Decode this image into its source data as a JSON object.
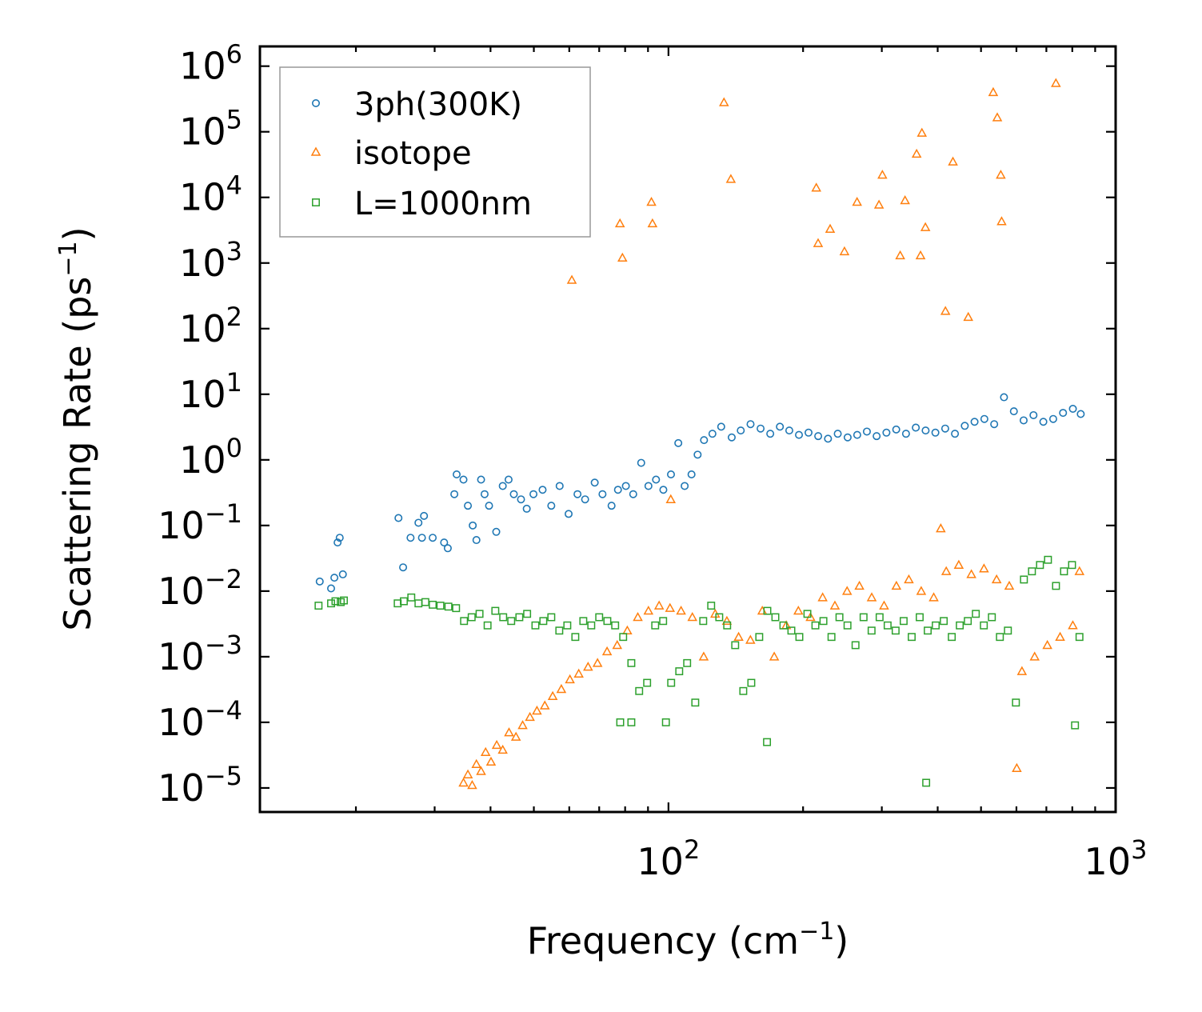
{
  "chart_data": {
    "type": "scatter",
    "title": "",
    "xlabel": "Frequency (cm",
    "xlabel_sup": "−1",
    "xlabel_end": ")",
    "ylabel": "Scattering Rate (ps",
    "ylabel_sup": "−1",
    "ylabel_end": ")",
    "xscale": "log",
    "yscale": "log",
    "xlim": [
      12.2,
      1000
    ],
    "ylim": [
      4.3e-06,
      2000000.0
    ],
    "x_ticks": [
      {
        "value": 100,
        "base": "10",
        "exp": "2"
      },
      {
        "value": 1000,
        "base": "10",
        "exp": "3"
      }
    ],
    "y_ticks": [
      {
        "value": 1000000.0,
        "base": "10",
        "exp": "6"
      },
      {
        "value": 100000.0,
        "base": "10",
        "exp": "5"
      },
      {
        "value": 10000.0,
        "base": "10",
        "exp": "4"
      },
      {
        "value": 1000.0,
        "base": "10",
        "exp": "3"
      },
      {
        "value": 100.0,
        "base": "10",
        "exp": "2"
      },
      {
        "value": 10.0,
        "base": "10",
        "exp": "1"
      },
      {
        "value": 1.0,
        "base": "10",
        "exp": "0"
      },
      {
        "value": 0.1,
        "base": "10",
        "exp": "−1"
      },
      {
        "value": 0.01,
        "base": "10",
        "exp": "−2"
      },
      {
        "value": 0.001,
        "base": "10",
        "exp": "−3"
      },
      {
        "value": 0.0001,
        "base": "10",
        "exp": "−4"
      },
      {
        "value": 1e-05,
        "base": "10",
        "exp": "−5"
      }
    ],
    "legend_position": "top-left",
    "grid": false,
    "series": [
      {
        "name": "3ph(300K)",
        "marker": "circle",
        "color": "#1f77b4",
        "x": [
          16.6,
          17.9,
          18.2,
          18.4,
          18.7,
          17.6,
          24.9,
          25.5,
          26.5,
          27.6,
          28.1,
          28.4,
          29.7,
          31.5,
          32.1,
          33.6,
          33.2,
          34.8,
          35.6,
          36.5,
          37.2,
          38.1,
          38.8,
          39.7,
          41.2,
          42.6,
          43.9,
          45.1,
          46.8,
          48.2,
          49.9,
          52.3,
          54.7,
          57.1,
          59.8,
          62.6,
          65.1,
          68.4,
          71.2,
          74.6,
          77.1,
          80.3,
          83.4,
          86.9,
          90.2,
          93.8,
          97.4,
          101.3,
          105.2,
          108.7,
          112.6,
          116.2,
          120.1,
          125.4,
          131.2,
          138.5,
          145.1,
          152.6,
          160.7,
          168.9,
          177.5,
          186.3,
          195.8,
          205.7,
          216.2,
          227.4,
          239.1,
          251.6,
          264.3,
          277.8,
          292.1,
          307.2,
          323.1,
          339.8,
          357.4,
          375.9,
          395.3,
          415.8,
          437.2,
          459.9,
          483.6,
          508.7,
          535.1,
          562.8,
          592.1,
          622.7,
          655.1,
          689.2,
          725.1,
          762.8,
          802.4,
          835.6
        ],
        "y": [
          0.014,
          0.016,
          0.055,
          0.065,
          0.018,
          0.011,
          0.13,
          0.023,
          0.065,
          0.11,
          0.065,
          0.14,
          0.065,
          0.055,
          0.045,
          0.6,
          0.3,
          0.5,
          0.2,
          0.1,
          0.06,
          0.5,
          0.3,
          0.2,
          0.08,
          0.4,
          0.5,
          0.3,
          0.25,
          0.18,
          0.3,
          0.35,
          0.2,
          0.4,
          0.15,
          0.3,
          0.25,
          0.45,
          0.3,
          0.2,
          0.35,
          0.4,
          0.3,
          0.9,
          0.4,
          0.5,
          0.35,
          0.6,
          1.8,
          0.4,
          0.6,
          1.2,
          2.0,
          2.5,
          3.2,
          2.2,
          2.8,
          3.5,
          3.0,
          2.5,
          3.2,
          2.8,
          2.4,
          2.6,
          2.3,
          2.1,
          2.5,
          2.2,
          2.4,
          2.7,
          2.3,
          2.6,
          2.9,
          2.5,
          3.1,
          2.8,
          2.6,
          3.0,
          2.5,
          3.3,
          3.8,
          4.2,
          3.5,
          9.0,
          5.5,
          4.0,
          4.8,
          3.8,
          4.2,
          5.2,
          6.0,
          5.0
        ]
      },
      {
        "name": "isotope",
        "marker": "triangle",
        "color": "#ff7f0e",
        "x": [
          34.8,
          35.6,
          36.4,
          37.2,
          38.1,
          39.0,
          40.1,
          41.3,
          42.6,
          44.0,
          45.6,
          47.2,
          49.0,
          50.8,
          52.9,
          55.1,
          57.6,
          60.2,
          63.0,
          66.1,
          69.4,
          72.9,
          76.8,
          80.9,
          85.4,
          90.2,
          95.3,
          100.8,
          106.7,
          113.1,
          119.9,
          127.2,
          135.1,
          143.5,
          152.5,
          162.1,
          172.4,
          183.4,
          195.2,
          207.8,
          221.2,
          235.6,
          250.9,
          267.3,
          284.8,
          303.5,
          323.4,
          344.8,
          367.5,
          391.9,
          418.0,
          445.9,
          475.8,
          507.7,
          541.8,
          578.3,
          617.3,
          659.0,
          703.6,
          751.3,
          802.2,
          830.1,
          60.8,
          77.9,
          78.9,
          91.6,
          92.1,
          133.1,
          137.9,
          214.1,
          216.1,
          229.9,
          247.5,
          264.1,
          295.7,
          300.9,
          329.8,
          338.1,
          358.9,
          366.2,
          368.8,
          375.5,
          416.3,
          432.7,
          468.2,
          532.4,
          543.7,
          553.6,
          556.0,
          735.3,
          101.2,
          406.4,
          601.1
        ],
        "y": [
          1.2e-05,
          1.6e-05,
          1.1e-05,
          2.3e-05,
          1.8e-05,
          3.5e-05,
          2.5e-05,
          4.5e-05,
          3.8e-05,
          7e-05,
          6e-05,
          9e-05,
          0.00012,
          0.00015,
          0.00018,
          0.00025,
          0.00032,
          0.00045,
          0.00055,
          0.0007,
          0.0008,
          0.0012,
          0.0015,
          0.0025,
          0.004,
          0.005,
          0.006,
          0.0055,
          0.005,
          0.004,
          0.001,
          0.0045,
          0.0035,
          0.002,
          0.0018,
          0.005,
          0.001,
          0.003,
          0.005,
          0.004,
          0.008,
          0.006,
          0.01,
          0.012,
          0.008,
          0.006,
          0.012,
          0.015,
          0.01,
          0.008,
          0.02,
          0.025,
          0.018,
          0.022,
          0.015,
          0.012,
          0.0006,
          0.001,
          0.0015,
          0.002,
          0.003,
          0.02,
          550,
          4000,
          1200,
          8500,
          4000,
          280000,
          19000,
          14000,
          2000,
          3300,
          1500,
          8500,
          7700,
          22000,
          1300,
          9000,
          46000,
          1300,
          96000,
          3500,
          185,
          35000,
          150,
          400000,
          165000,
          22000,
          4300,
          550000,
          0.25,
          0.09,
          2e-05
        ]
      },
      {
        "name": "L=1000nm",
        "marker": "square",
        "color": "#2ca02c",
        "x": [
          16.5,
          17.6,
          18.0,
          18.5,
          18.8,
          24.8,
          25.6,
          26.6,
          27.6,
          28.6,
          29.7,
          30.9,
          32.2,
          33.5,
          34.9,
          36.3,
          37.8,
          39.4,
          41.0,
          42.7,
          44.5,
          46.4,
          48.3,
          50.4,
          52.5,
          54.7,
          57.0,
          59.4,
          61.9,
          64.5,
          67.2,
          70.0,
          73.0,
          76.0,
          79.2,
          82.6,
          86.0,
          89.6,
          93.4,
          97.3,
          101.4,
          105.7,
          110.1,
          114.8,
          119.6,
          124.6,
          129.9,
          135.3,
          141.0,
          147.0,
          153.2,
          159.6,
          166.4,
          173.4,
          180.7,
          188.3,
          196.2,
          204.5,
          213.1,
          222.1,
          231.5,
          241.2,
          251.4,
          262.0,
          273.1,
          284.6,
          296.6,
          309.1,
          322.1,
          335.7,
          349.9,
          364.6,
          380.0,
          396.0,
          412.7,
          430.1,
          448.2,
          467.1,
          486.8,
          507.3,
          528.7,
          551.0,
          574.2,
          598.4,
          623.6,
          649.9,
          677.3,
          705.8,
          735.6,
          766.6,
          798.9,
          830.1,
          78.0,
          98.7,
          82.6,
          166.1,
          377.0,
          811.3
        ],
        "y": [
          0.006,
          0.0065,
          0.007,
          0.0068,
          0.0072,
          0.0065,
          0.007,
          0.008,
          0.0065,
          0.0068,
          0.0062,
          0.006,
          0.0058,
          0.0055,
          0.0035,
          0.004,
          0.0045,
          0.003,
          0.005,
          0.004,
          0.0035,
          0.004,
          0.0045,
          0.003,
          0.0035,
          0.004,
          0.0025,
          0.003,
          0.002,
          0.0035,
          0.003,
          0.004,
          0.0035,
          0.003,
          0.002,
          0.0008,
          0.0003,
          0.0004,
          0.003,
          0.0035,
          0.0004,
          0.0006,
          0.0008,
          0.0002,
          0.0035,
          0.006,
          0.004,
          0.003,
          0.0015,
          0.0003,
          0.0004,
          0.002,
          0.005,
          0.004,
          0.003,
          0.0025,
          0.002,
          0.0045,
          0.003,
          0.0035,
          0.002,
          0.004,
          0.003,
          0.0015,
          0.004,
          0.0025,
          0.004,
          0.003,
          0.0025,
          0.0035,
          0.002,
          0.004,
          0.0025,
          0.003,
          0.0035,
          0.002,
          0.003,
          0.0035,
          0.0045,
          0.003,
          0.004,
          0.002,
          0.0025,
          0.0002,
          0.015,
          0.02,
          0.025,
          0.03,
          0.012,
          0.02,
          0.025,
          0.002,
          0.0001,
          0.0001,
          0.0001,
          5e-05,
          1.2e-05,
          9e-05
        ]
      }
    ]
  }
}
